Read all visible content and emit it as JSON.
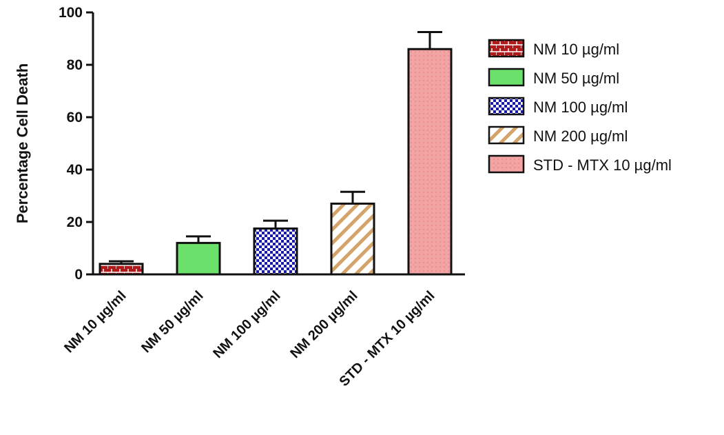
{
  "chart_data": {
    "type": "bar",
    "title": "",
    "xlabel": "",
    "ylabel": "Percentage Cell Death",
    "ylim": [
      0,
      100
    ],
    "yticks": [
      "0",
      "20",
      "40",
      "60",
      "80",
      "100"
    ],
    "grid": false,
    "legend_position": "right",
    "categories": [
      "NM 10 µg/ml",
      "NM 50 µg/ml",
      "NM 100 µg/ml",
      "NM  200 µg/ml",
      "STD - MTX 10 µg/ml"
    ],
    "values": [
      4,
      12,
      17.5,
      27,
      86
    ],
    "errors": [
      1,
      2.5,
      3,
      4.5,
      6.5
    ],
    "legend": [
      "NM 10 µg/ml",
      "NM 50 µg/ml",
      "NM 100 µg/ml",
      "NM  200 µg/ml",
      "STD - MTX 10 µg/ml"
    ],
    "colors": [
      "#b01a1a",
      "#6be06b",
      "#1a1aa8",
      "#d4a36a",
      "#f2a3a3"
    ],
    "patterns": [
      "brick",
      "solid",
      "checker",
      "diagonal",
      "dotted"
    ]
  }
}
